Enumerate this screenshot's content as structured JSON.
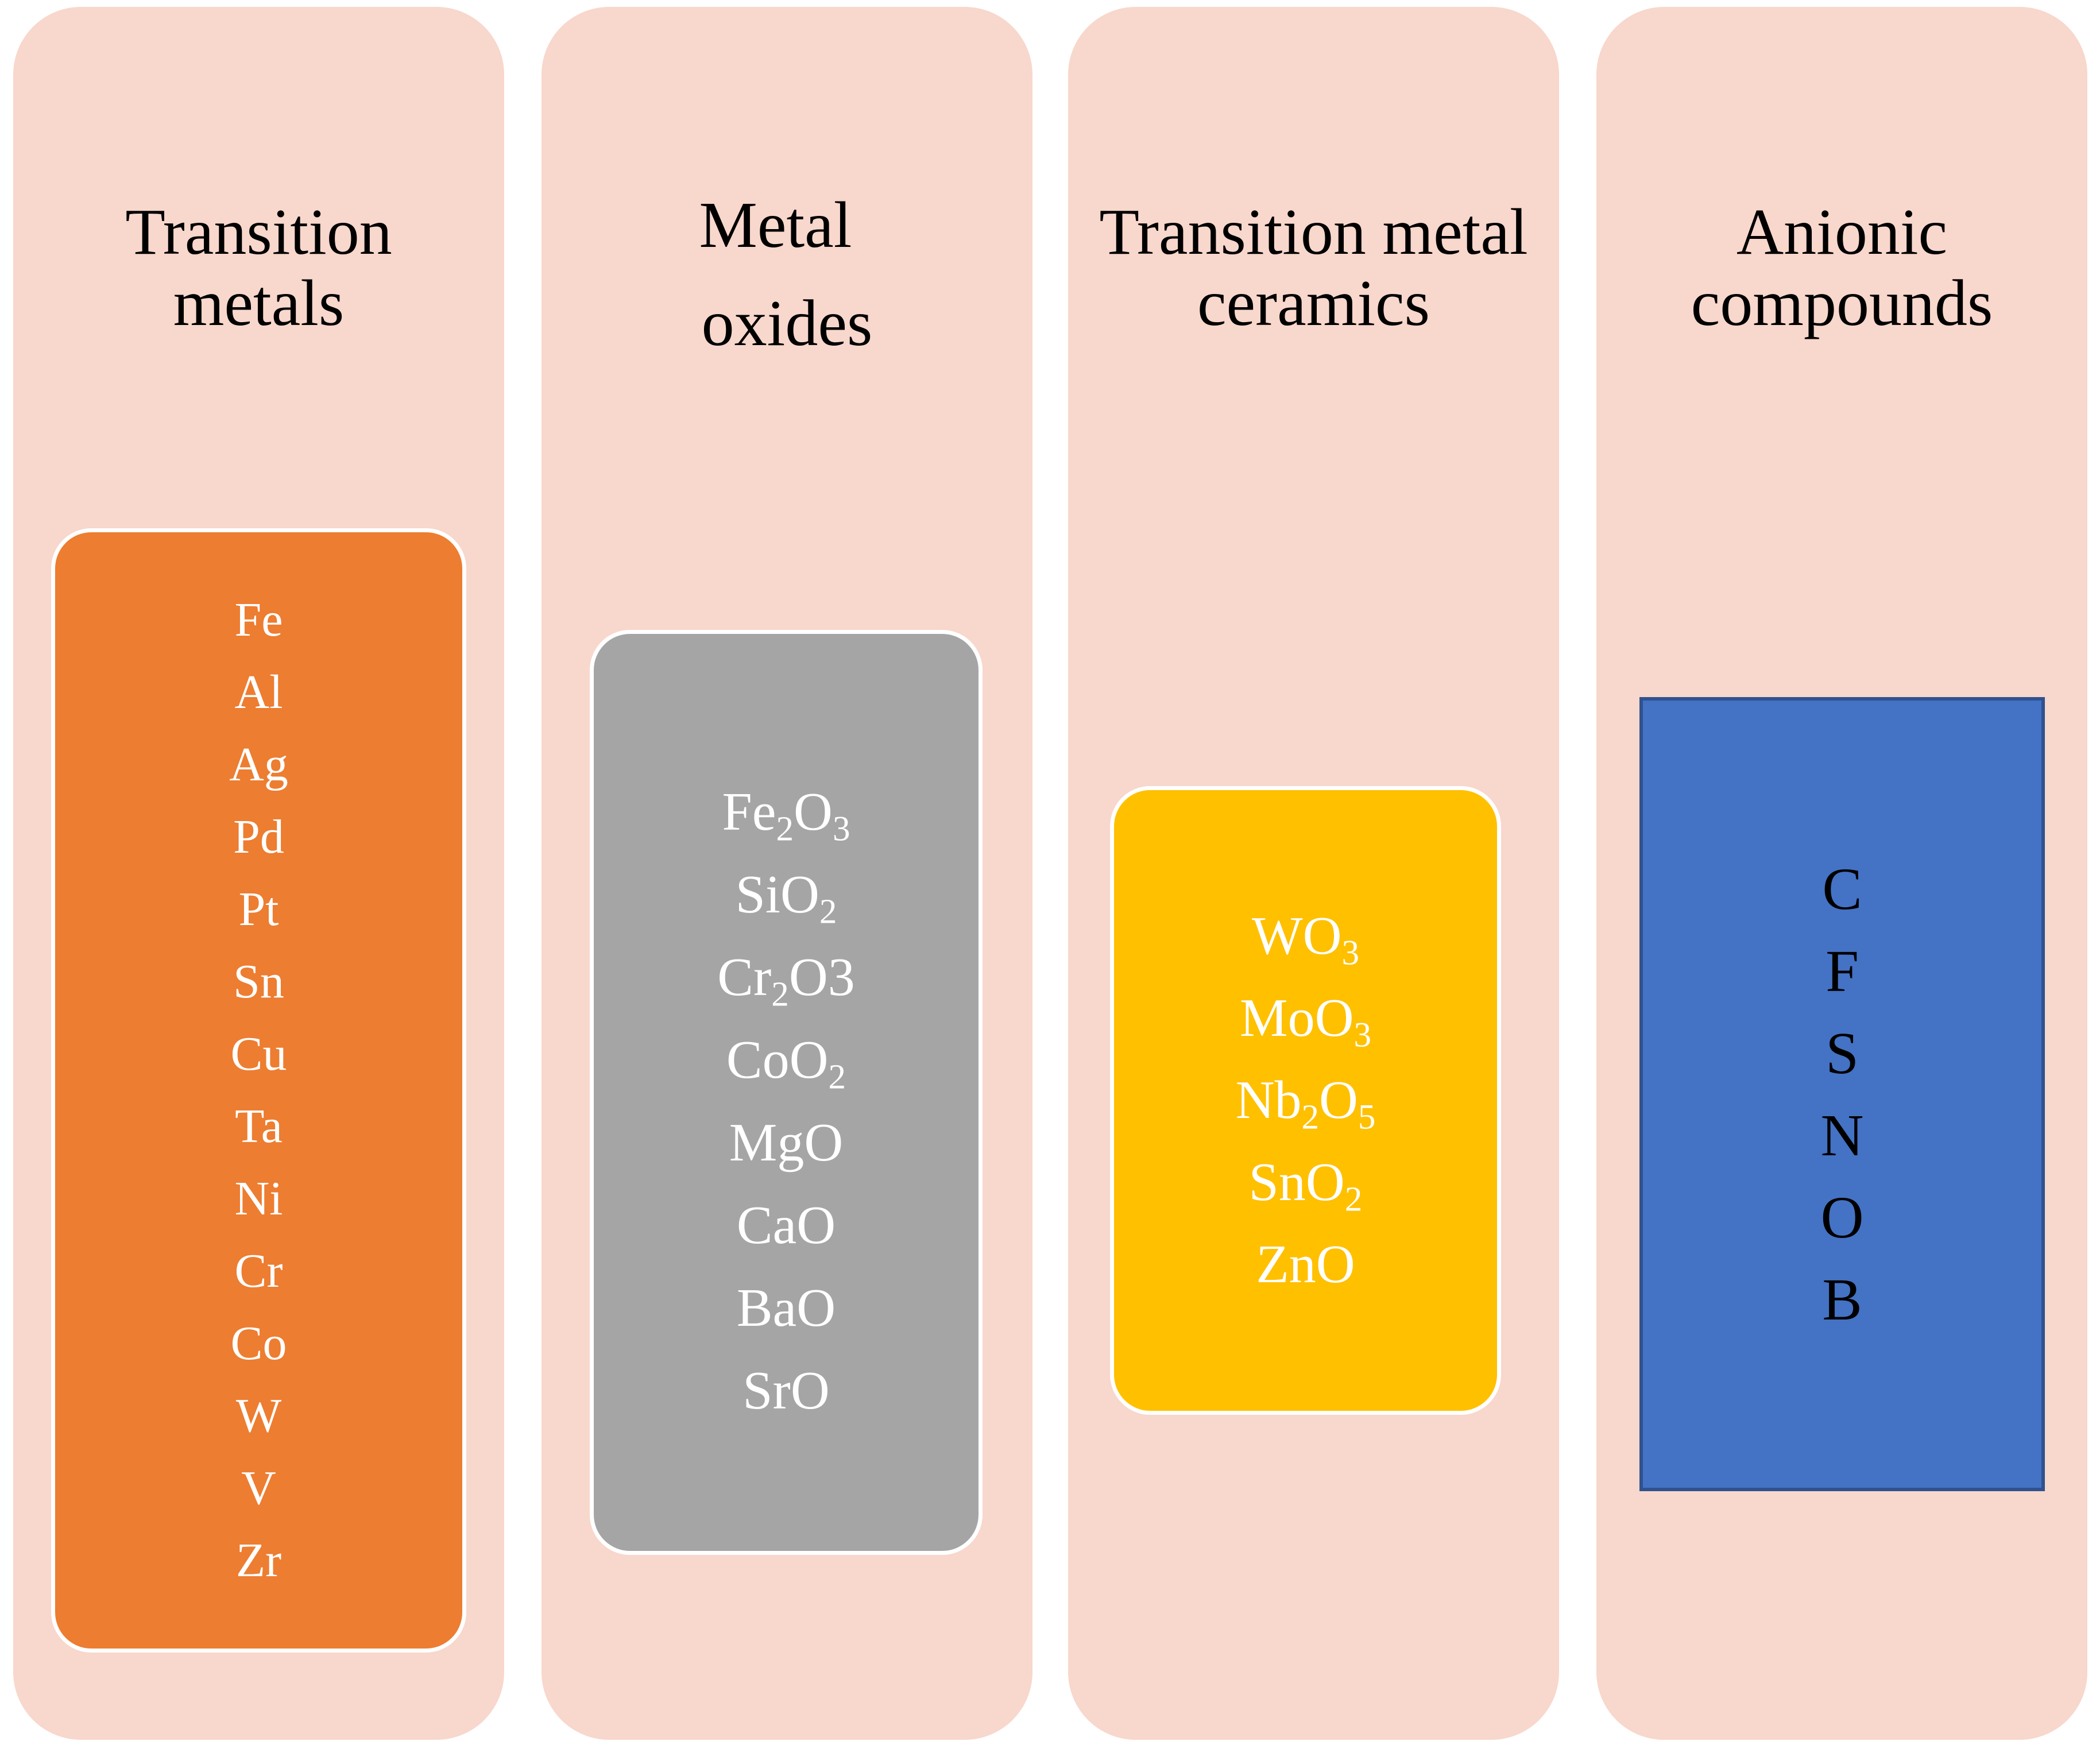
{
  "columns": [
    {
      "title_lines": [
        "Transition",
        "metals"
      ],
      "box_color": "#ed7d31",
      "text_color": "#ffffff",
      "items": [
        [
          {
            "t": "Fe"
          }
        ],
        [
          {
            "t": "Al"
          }
        ],
        [
          {
            "t": "Ag"
          }
        ],
        [
          {
            "t": "Pd"
          }
        ],
        [
          {
            "t": "Pt"
          }
        ],
        [
          {
            "t": "Sn"
          }
        ],
        [
          {
            "t": "Cu"
          }
        ],
        [
          {
            "t": "Ta"
          }
        ],
        [
          {
            "t": "Ni"
          }
        ],
        [
          {
            "t": "Cr"
          }
        ],
        [
          {
            "t": "Co"
          }
        ],
        [
          {
            "t": "W"
          }
        ],
        [
          {
            "t": "V"
          }
        ],
        [
          {
            "t": "Zr"
          }
        ]
      ]
    },
    {
      "title_lines": [
        "Metal",
        "oxides"
      ],
      "box_color": "#a5a5a5",
      "text_color": "#ffffff",
      "items": [
        [
          {
            "t": "Fe"
          },
          {
            "sub": "2"
          },
          {
            "t": "O"
          },
          {
            "sub": "3"
          }
        ],
        [
          {
            "t": "SiO"
          },
          {
            "sub": "2"
          }
        ],
        [
          {
            "t": "Cr"
          },
          {
            "sub": "2"
          },
          {
            "t": "O3"
          }
        ],
        [
          {
            "t": "CoO"
          },
          {
            "sub": "2"
          }
        ],
        [
          {
            "t": "MgO"
          }
        ],
        [
          {
            "t": "CaO"
          }
        ],
        [
          {
            "t": "BaO"
          }
        ],
        [
          {
            "t": "SrO"
          }
        ]
      ]
    },
    {
      "title_lines": [
        "Transition metal",
        "ceramics"
      ],
      "box_color": "#ffc000",
      "text_color": "#ffffff",
      "items": [
        [
          {
            "t": "WO"
          },
          {
            "sub": "3"
          }
        ],
        [
          {
            "t": "MoO"
          },
          {
            "sub": "3"
          }
        ],
        [
          {
            "t": "Nb"
          },
          {
            "sub": "2"
          },
          {
            "t": "O"
          },
          {
            "sub": "5"
          }
        ],
        [
          {
            "t": "SnO"
          },
          {
            "sub": "2"
          }
        ],
        [
          {
            "t": "ZnO"
          }
        ]
      ]
    },
    {
      "title_lines": [
        "Anionic",
        "compounds"
      ],
      "box_color": "#4472c4",
      "box_border_color": "#2f528f",
      "text_color": "#000000",
      "items": [
        [
          {
            "t": "C"
          }
        ],
        [
          {
            "t": "F"
          }
        ],
        [
          {
            "t": "S"
          }
        ],
        [
          {
            "t": "N"
          }
        ],
        [
          {
            "t": "O"
          }
        ],
        [
          {
            "t": "B"
          }
        ]
      ]
    }
  ]
}
